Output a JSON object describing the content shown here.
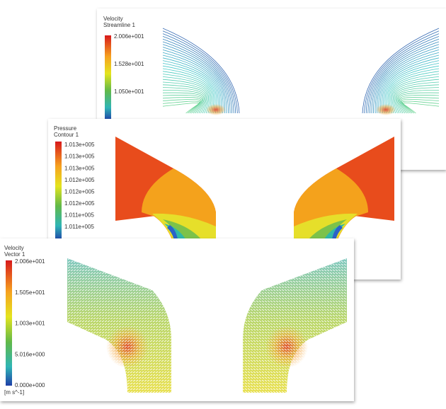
{
  "panels": [
    {
      "title": "Velocity",
      "subtitle": "Streamline 1",
      "legend_labels": [
        "2.006e+001",
        "1.528e+001",
        "1.050e+001"
      ]
    },
    {
      "title": "Pressure",
      "subtitle": "Contour 1",
      "legend_labels": [
        "1.013e+005",
        "1.013e+005",
        "1.013e+005",
        "1.012e+005",
        "1.012e+005",
        "1.012e+005",
        "1.011e+005",
        "1.011e+005"
      ]
    },
    {
      "title": "Velocity",
      "subtitle": "Vector 1",
      "legend_labels": [
        "2.006e+001",
        "1.505e+001",
        "1.003e+001",
        "5.016e+000",
        "0.000e+000"
      ],
      "unit": "[m s^-1]"
    }
  ]
}
